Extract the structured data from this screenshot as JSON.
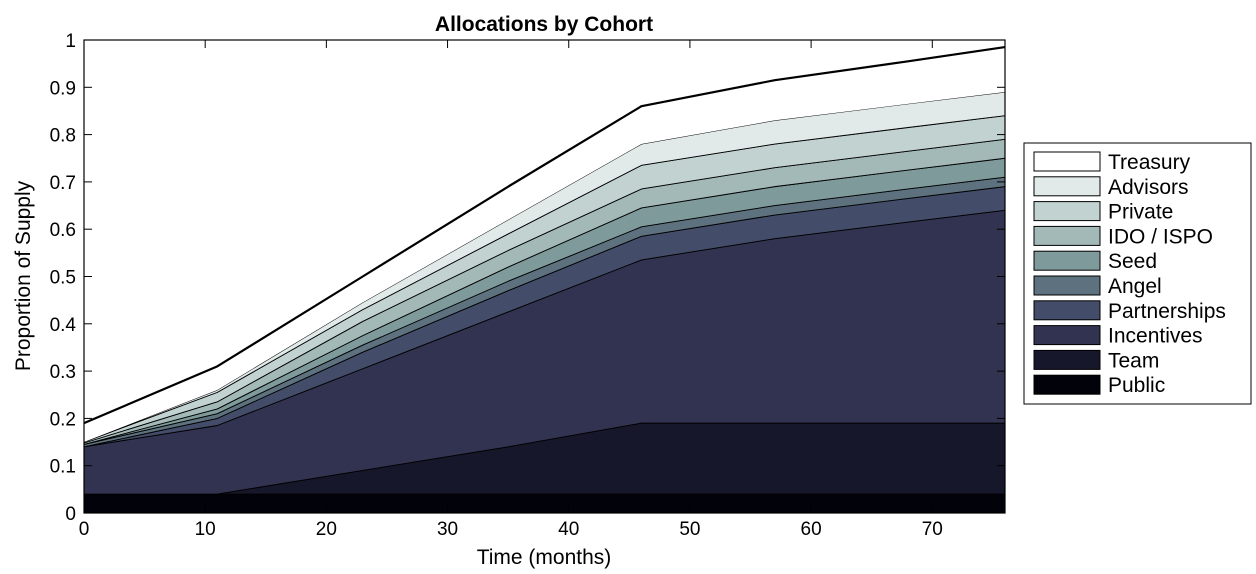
{
  "chart_data": {
    "type": "area",
    "stacked": true,
    "title": "Allocations by Cohort",
    "xlabel": "Time (months)",
    "ylabel": "Proportion of Supply",
    "xlim": [
      0,
      76
    ],
    "ylim": [
      0,
      1
    ],
    "x_ticks": [
      0,
      10,
      20,
      30,
      40,
      50,
      60,
      70
    ],
    "y_ticks": [
      0,
      0.1,
      0.2,
      0.3,
      0.4,
      0.5,
      0.6,
      0.7,
      0.8,
      0.9,
      1
    ],
    "y_tick_labels": [
      "0",
      "0.1",
      "0.2",
      "0.3",
      "0.4",
      "0.5",
      "0.6",
      "0.7",
      "0.8",
      "0.9",
      "1"
    ],
    "grid": false,
    "legend_position": "outside-right",
    "x": [
      0,
      11,
      23,
      35,
      46,
      57,
      68,
      76
    ],
    "series": [
      {
        "name": "Public",
        "color": "#02020a",
        "values": [
          0.04,
          0.04,
          0.04,
          0.04,
          0.04,
          0.04,
          0.04,
          0.04
        ]
      },
      {
        "name": "Team",
        "color": "#16172a",
        "values": [
          0.0,
          0.0,
          0.05,
          0.1,
          0.15,
          0.15,
          0.15,
          0.15
        ]
      },
      {
        "name": "Incentives",
        "color": "#323350",
        "values": [
          0.1,
          0.145,
          0.215,
          0.285,
          0.345,
          0.39,
          0.425,
          0.45
        ]
      },
      {
        "name": "Partnerships",
        "color": "#434c68",
        "values": [
          0.0,
          0.015,
          0.035,
          0.045,
          0.05,
          0.05,
          0.05,
          0.05
        ]
      },
      {
        "name": "Angel",
        "color": "#5d727e",
        "values": [
          0.005,
          0.01,
          0.015,
          0.02,
          0.02,
          0.02,
          0.02,
          0.02
        ]
      },
      {
        "name": "Seed",
        "color": "#7e9a9a",
        "values": [
          0.0,
          0.01,
          0.02,
          0.03,
          0.04,
          0.04,
          0.04,
          0.04
        ]
      },
      {
        "name": "IDO / ISPO",
        "color": "#a3b9b8",
        "values": [
          0.003,
          0.015,
          0.03,
          0.035,
          0.04,
          0.04,
          0.04,
          0.04
        ]
      },
      {
        "name": "Private",
        "color": "#c2d2d1",
        "values": [
          0.002,
          0.02,
          0.025,
          0.035,
          0.05,
          0.05,
          0.05,
          0.05
        ]
      },
      {
        "name": "Advisors",
        "color": "#e2eae9",
        "values": [
          0.0,
          0.005,
          0.015,
          0.03,
          0.045,
          0.05,
          0.05,
          0.05
        ]
      },
      {
        "name": "Treasury",
        "color": "#ffffff",
        "values": [
          0.04,
          0.05,
          0.055,
          0.07,
          0.08,
          0.085,
          0.09,
          0.095
        ]
      }
    ]
  }
}
